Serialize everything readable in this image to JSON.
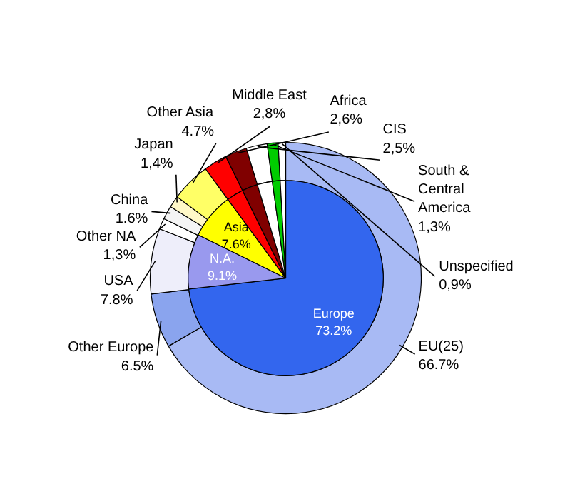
{
  "chart_data": {
    "type": "donut",
    "legend": false,
    "categories": [
      "EU(25)",
      "Other Europe",
      "USA",
      "Other NA",
      "China",
      "Japan",
      "Other Asia",
      "Middle East",
      "Africa",
      "CIS",
      "South &\nCentral\nAmerica",
      "Unspecified"
    ],
    "series": [
      {
        "values": [
          66.7,
          6.5,
          7.8,
          1.3,
          1.6,
          1.4,
          4.7,
          2.8,
          2.6,
          2.5,
          1.3,
          0.9
        ],
        "value_labels": [
          "66.7%",
          "6.5%",
          "7.8%",
          "1,3%",
          "1.6%",
          "1,4%",
          "4.7%",
          "2,8%",
          "2,6%",
          "2,5%",
          "1,3%",
          "0,9%"
        ],
        "colors": [
          "#a8baf4",
          "#8aa4ee",
          "#eeeefa",
          "#ffffff",
          "#f4f4f4",
          "#fff8c8",
          "#ffff66",
          "#ff0000",
          "#800000",
          "#ffffff",
          "#00cc00",
          "#ffffff"
        ]
      },
      {
        "type": "pie",
        "values": [
          73.2,
          null,
          9.1,
          null,
          null,
          null,
          7.6,
          2.8,
          2.6,
          2.5,
          1.3,
          0.9
        ],
        "value_labels": [
          "Europe\n73.2%",
          null,
          "N.A.\n9.1%",
          null,
          null,
          null,
          "Asia\n7.6%",
          null,
          null,
          null,
          null,
          null
        ],
        "colors": [
          "#3366ee",
          null,
          "#9999ee",
          null,
          null,
          null,
          "#ffff00",
          "#ff0000",
          "#800000",
          "#ffffff",
          "#00cc00",
          "#ffffff"
        ]
      }
    ]
  }
}
